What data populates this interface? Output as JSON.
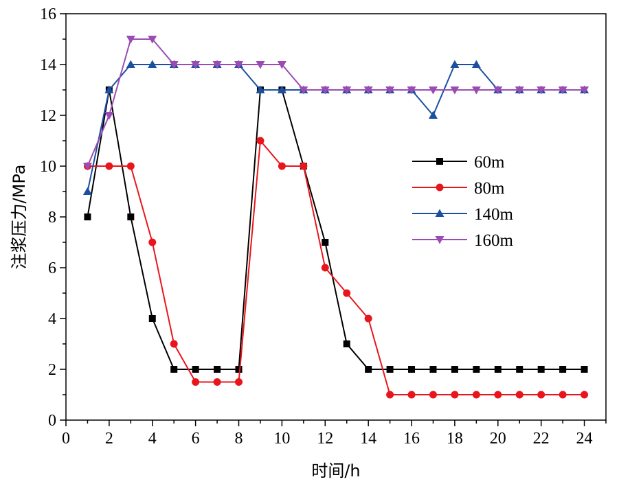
{
  "chart_data": {
    "type": "line",
    "title": "",
    "xlabel": "时间/h",
    "ylabel": "注浆压力/MPa",
    "xlim": [
      0,
      25
    ],
    "ylim": [
      0,
      16
    ],
    "xticks": [
      0,
      2,
      4,
      6,
      8,
      10,
      12,
      14,
      16,
      18,
      20,
      22,
      24
    ],
    "yticks": [
      0,
      2,
      4,
      6,
      8,
      10,
      12,
      14,
      16
    ],
    "grid": false,
    "legend_position": "right-middle",
    "x": [
      1,
      2,
      3,
      4,
      5,
      6,
      7,
      8,
      9,
      10,
      11,
      12,
      13,
      14,
      15,
      16,
      17,
      18,
      19,
      20,
      21,
      22,
      23,
      24
    ],
    "series": [
      {
        "name": "60m",
        "color": "#000000",
        "marker": "square",
        "values": [
          8,
          13,
          8,
          4,
          2,
          2,
          2,
          2,
          13,
          13,
          10,
          7,
          3,
          2,
          2,
          2,
          2,
          2,
          2,
          2,
          2,
          2,
          2,
          2
        ]
      },
      {
        "name": "80m",
        "color": "#e8161c",
        "marker": "circle",
        "values": [
          10,
          10,
          10,
          7,
          3,
          1.5,
          1.5,
          1.5,
          11,
          10,
          10,
          6,
          5,
          4,
          1,
          1,
          1,
          1,
          1,
          1,
          1,
          1,
          1,
          1
        ]
      },
      {
        "name": "140m",
        "color": "#1b4fa0",
        "marker": "triangle-up",
        "values": [
          9,
          13,
          14,
          14,
          14,
          14,
          14,
          14,
          13,
          13,
          13,
          13,
          13,
          13,
          13,
          13,
          12,
          14,
          14,
          13,
          13,
          13,
          13,
          13
        ]
      },
      {
        "name": "160m",
        "color": "#9b4bb4",
        "marker": "triangle-down",
        "values": [
          10,
          12,
          15,
          15,
          14,
          14,
          14,
          14,
          14,
          14,
          13,
          13,
          13,
          13,
          13,
          13,
          13,
          13,
          13,
          13,
          13,
          13,
          13,
          13
        ]
      }
    ]
  }
}
